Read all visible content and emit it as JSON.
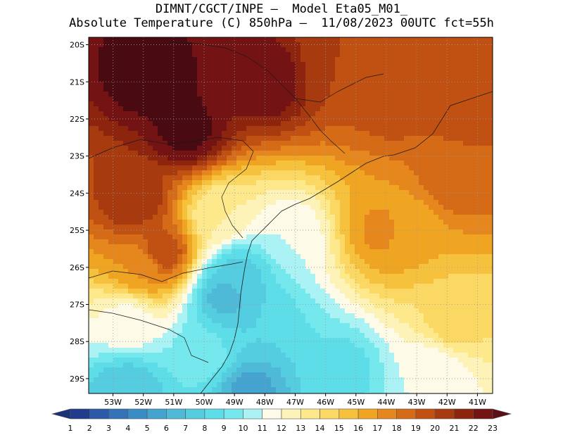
{
  "header": {
    "line1": "DIMNT/CGCT/INPE –  Model Eta05_M01_",
    "line2": "Absolute Temperature (C) 850hPa –  11/08/2023 00UTC fct=55h"
  },
  "map": {
    "lat_labels": [
      "20S",
      "21S",
      "22S",
      "23S",
      "24S",
      "25S",
      "26S",
      "27S",
      "28S",
      "29S"
    ],
    "lon_labels": [
      "53W",
      "52W",
      "51W",
      "50W",
      "49W",
      "48W",
      "47W",
      "46W",
      "45W",
      "44W",
      "43W",
      "42W",
      "41W"
    ],
    "field_hotspots": [
      {
        "lon": -51.8,
        "lat": -20.8,
        "value": 24
      },
      {
        "lon": -50.6,
        "lat": -22.3,
        "value": 23.5
      },
      {
        "lon": -52.3,
        "lat": -24.2,
        "value": 21
      },
      {
        "lon": -51.4,
        "lat": -25.6,
        "value": 20
      },
      {
        "lon": -48.0,
        "lat": -21.0,
        "value": 23
      },
      {
        "lon": -45.5,
        "lat": -20.5,
        "value": 20
      },
      {
        "lon": -43.8,
        "lat": -21.5,
        "value": 19.5
      },
      {
        "lon": -41.2,
        "lat": -21.2,
        "value": 20
      },
      {
        "lon": -41.7,
        "lat": -23.5,
        "value": 19
      },
      {
        "lon": -43.5,
        "lat": -25.0,
        "value": 16
      },
      {
        "lon": -44.0,
        "lat": -25.0,
        "value": 17.5
      },
      {
        "lon": -49.5,
        "lat": -24.6,
        "value": 13
      },
      {
        "lon": -47.2,
        "lat": -25.2,
        "value": 11
      },
      {
        "lon": -48.8,
        "lat": -26.2,
        "value": 7.5
      },
      {
        "lon": -49.3,
        "lat": -26.8,
        "value": 6.5
      },
      {
        "lon": -48.2,
        "lat": -27.6,
        "value": 8
      },
      {
        "lon": -50.0,
        "lat": -28.4,
        "value": 9.5
      },
      {
        "lon": -52.5,
        "lat": -29.3,
        "value": 7
      },
      {
        "lon": -48.5,
        "lat": -29.3,
        "value": 5.5
      },
      {
        "lon": -45.5,
        "lat": -28.8,
        "value": 8.5
      },
      {
        "lon": -42.5,
        "lat": -28.8,
        "value": 11
      },
      {
        "lon": -52.5,
        "lat": -27.5,
        "value": 11.5
      },
      {
        "lon": -52.0,
        "lat": -26.0,
        "value": 17
      },
      {
        "lon": -41.8,
        "lat": -27.5,
        "value": 14.5
      }
    ]
  },
  "colorbar": {
    "labels": [
      "1",
      "2",
      "3",
      "4",
      "5",
      "6",
      "7",
      "8",
      "9",
      "10",
      "11",
      "12",
      "13",
      "14",
      "15",
      "16",
      "17",
      "18",
      "19",
      "20",
      "21",
      "22",
      "23"
    ],
    "colors": [
      "#1f3d8c",
      "#2a5aa8",
      "#3473b7",
      "#3a8cc4",
      "#45a3cf",
      "#4fbad8",
      "#55cde0",
      "#5cdde8",
      "#75e8ee",
      "#aaf2f3",
      "#fdfbe8",
      "#fdf3b8",
      "#fde98c",
      "#fbd863",
      "#f6c23e",
      "#efa422",
      "#e5871c",
      "#d56b17",
      "#c15112",
      "#a83a10",
      "#8c240e",
      "#731314",
      "#5a0e16"
    ]
  }
}
